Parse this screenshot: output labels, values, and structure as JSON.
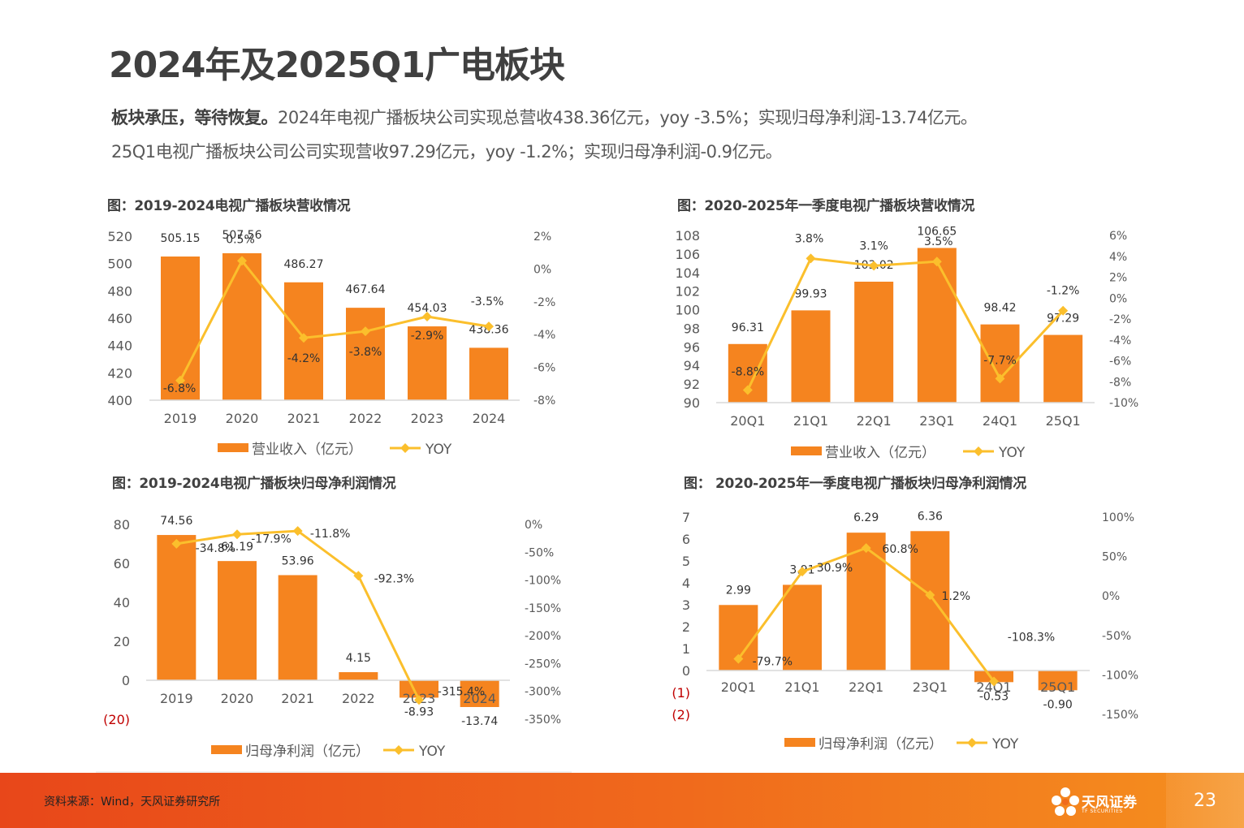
{
  "page": {
    "title": "2024年及2025Q1广电板块",
    "summary_bold": "板块承压，等待恢复。",
    "summary_line1": "2024年电视广播板块公司实现总营收438.36亿元，yoy -3.5%；实现归母净利润-13.74亿元。",
    "summary_line2": "25Q1电视广播板块公司公司实现营收97.29亿元，yoy  -1.2%；实现归母净利润-0.9亿元。",
    "source": "资料来源：Wind，天风证券研究所",
    "page_number": "23",
    "logo_text": "天风证券",
    "logo_sub": "TF SECURITIES"
  },
  "colors": {
    "bar": "#f5841f",
    "line": "#fbbf2c",
    "footer": "#f06a1c",
    "axis": "#d9d9d9",
    "neg_label": "#c00000"
  },
  "chart_data": [
    {
      "id": "c1",
      "type": "bar",
      "caption": "图：2019-2024电视广播板块营收情况",
      "categories": [
        "2019",
        "2020",
        "2021",
        "2022",
        "2023",
        "2024"
      ],
      "series": [
        {
          "name": "营业收入（亿元）",
          "kind": "bar",
          "axis": "left",
          "values": [
            505.15,
            507.56,
            486.27,
            467.64,
            454.03,
            438.36
          ],
          "labels": [
            "505.15",
            "507.56",
            "486.27",
            "467.64",
            "454.03",
            "438.36"
          ]
        },
        {
          "name": "YOY",
          "kind": "line",
          "axis": "right",
          "values": [
            -6.8,
            0.5,
            -4.2,
            -3.8,
            -2.9,
            -3.5
          ],
          "labels": [
            "-6.8%",
            "0.5%",
            "-4.2%",
            "-3.8%",
            "-2.9%",
            "-3.5%"
          ]
        }
      ],
      "left_axis": {
        "min": 400,
        "max": 520,
        "ticks": [
          "400",
          "420",
          "440",
          "460",
          "480",
          "500",
          "520"
        ]
      },
      "right_axis": {
        "min": -8,
        "max": 2,
        "ticks": [
          "-8%",
          "-6%",
          "-4%",
          "-2%",
          "0%",
          "2%"
        ]
      },
      "legend": [
        "营业收入（亿元）",
        "YOY"
      ]
    },
    {
      "id": "c2",
      "type": "bar",
      "caption": "图：2020-2025年一季度电视广播板块营收情况",
      "categories": [
        "20Q1",
        "21Q1",
        "22Q1",
        "23Q1",
        "24Q1",
        "25Q1"
      ],
      "series": [
        {
          "name": "营业收入（亿元）",
          "kind": "bar",
          "axis": "left",
          "values": [
            96.31,
            99.93,
            103.02,
            106.65,
            98.42,
            97.29
          ],
          "labels": [
            "96.31",
            "99.93",
            "103.02",
            "106.65",
            "98.42",
            "97.29"
          ]
        },
        {
          "name": "YOY",
          "kind": "line",
          "axis": "right",
          "values": [
            -8.8,
            3.8,
            3.1,
            3.5,
            -7.7,
            -1.2
          ],
          "labels": [
            "-8.8%",
            "3.8%",
            "3.1%",
            "3.5%",
            "-7.7%",
            "-1.2%"
          ]
        }
      ],
      "left_axis": {
        "min": 90,
        "max": 108,
        "ticks": [
          "90",
          "92",
          "94",
          "96",
          "98",
          "100",
          "102",
          "104",
          "106",
          "108"
        ]
      },
      "right_axis": {
        "min": -10,
        "max": 6,
        "ticks": [
          "-10%",
          "-8%",
          "-6%",
          "-4%",
          "-2%",
          "0%",
          "2%",
          "4%",
          "6%"
        ]
      },
      "legend": [
        "营业收入（亿元）",
        "YOY"
      ]
    },
    {
      "id": "c3",
      "type": "bar",
      "caption": "图：2019-2024电视广播板块归母净利润情况",
      "categories": [
        "2019",
        "2020",
        "2021",
        "2022",
        "2023",
        "2024"
      ],
      "series": [
        {
          "name": "归母净利润（亿元）",
          "kind": "bar",
          "axis": "left",
          "values": [
            74.56,
            61.19,
            53.96,
            4.15,
            -8.93,
            -13.74
          ],
          "labels": [
            "74.56",
            "61.19",
            "53.96",
            "4.15",
            "-8.93",
            "-13.74"
          ]
        },
        {
          "name": "YOY",
          "kind": "line",
          "axis": "right",
          "values": [
            -34.8,
            -17.9,
            -11.8,
            -92.3,
            -315.4,
            null
          ],
          "labels": [
            "-34.8%",
            "-17.9%",
            "-11.8%",
            "-92.3%",
            "-315.4%",
            ""
          ]
        }
      ],
      "left_axis": {
        "min": -20,
        "max": 80,
        "ticks": [
          "(20)",
          "0",
          "20",
          "40",
          "60",
          "80"
        ]
      },
      "right_axis": {
        "min": -350,
        "max": 0,
        "ticks": [
          "-350%",
          "-300%",
          "-250%",
          "-200%",
          "-150%",
          "-100%",
          "-50%",
          "0%"
        ]
      },
      "legend": [
        "归母净利润（亿元）",
        "YOY"
      ]
    },
    {
      "id": "c4",
      "type": "bar",
      "caption": "图： 2020-2025年一季度电视广播板块归母净利润情况",
      "categories": [
        "20Q1",
        "21Q1",
        "22Q1",
        "23Q1",
        "24Q1",
        "25Q1"
      ],
      "series": [
        {
          "name": "归母净利润（亿元）",
          "kind": "bar",
          "axis": "left",
          "values": [
            2.99,
            3.91,
            6.29,
            6.36,
            -0.53,
            -0.9
          ],
          "labels": [
            "2.99",
            "3.91",
            "6.29",
            "6.36",
            "-0.53",
            "-0.90"
          ]
        },
        {
          "name": "YOY",
          "kind": "line",
          "axis": "right",
          "values": [
            -79.7,
            30.9,
            60.8,
            1.2,
            -108.3,
            null
          ],
          "labels": [
            "-79.7%",
            "30.9%",
            "60.8%",
            "1.2%",
            "-108.3%",
            ""
          ]
        }
      ],
      "left_axis": {
        "min": -2,
        "max": 7,
        "ticks": [
          "(2)",
          "(1)",
          "0",
          "1",
          "2",
          "3",
          "4",
          "5",
          "6",
          "7"
        ]
      },
      "right_axis": {
        "min": -150,
        "max": 100,
        "ticks": [
          "-150%",
          "-100%",
          "-50%",
          "0%",
          "50%",
          "100%"
        ]
      },
      "legend": [
        "归母净利润（亿元）",
        "YOY"
      ]
    }
  ]
}
